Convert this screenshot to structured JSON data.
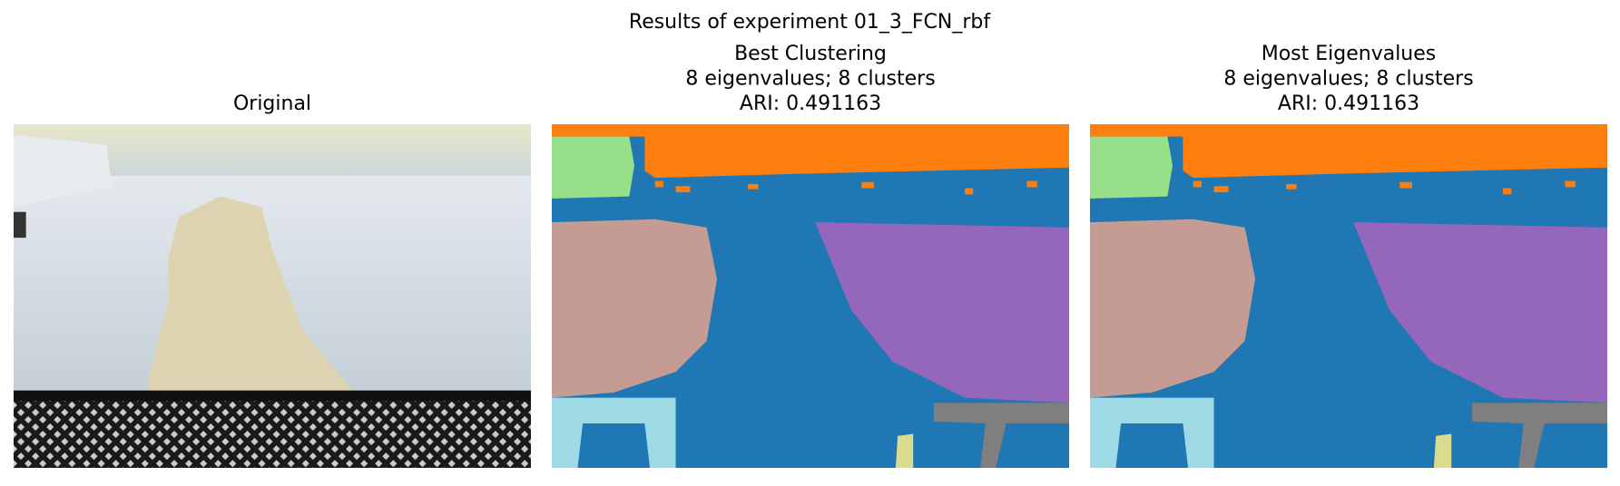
{
  "title": "Results of experiment 01_3_FCN_rbf",
  "panels": [
    {
      "title_lines": [
        "Original"
      ]
    },
    {
      "title_lines": [
        "Best Clustering",
        "8 eigenvalues; 8 clusters",
        "ARI: 0.491163"
      ]
    },
    {
      "title_lines": [
        "Most Eigenvalues",
        "8 eigenvalues; 8 clusters",
        "ARI: 0.491163"
      ]
    }
  ]
}
